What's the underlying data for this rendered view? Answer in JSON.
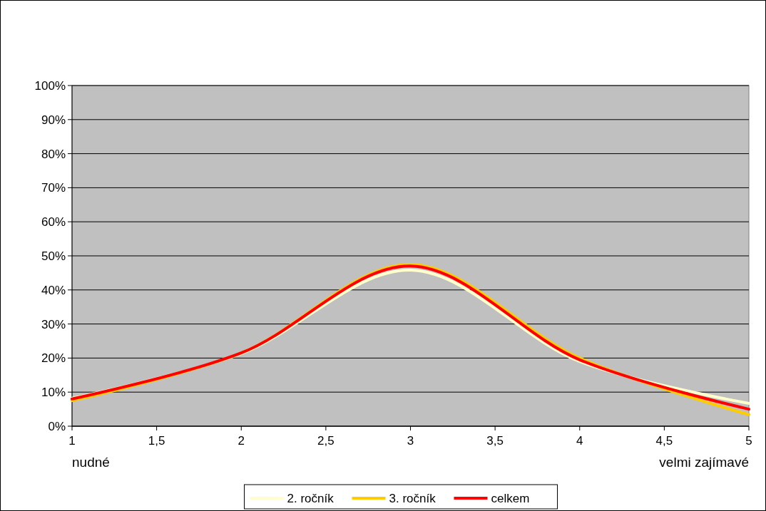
{
  "chart_data": {
    "type": "line",
    "x": [
      1,
      2,
      3,
      4,
      5
    ],
    "series": [
      {
        "name": "2. ročník",
        "color": "#ffffcc",
        "values": [
          8.2,
          21.3,
          45.8,
          19,
          6.7
        ]
      },
      {
        "name": "3. ročník",
        "color": "#ffcc00",
        "values": [
          7.5,
          21.5,
          47.5,
          20,
          3.4
        ]
      },
      {
        "name": "celkem",
        "color": "#ff0000",
        "values": [
          8,
          21.5,
          47,
          19.5,
          5
        ]
      }
    ],
    "xlim": [
      1,
      5
    ],
    "xticks": [
      1,
      {
        "value": 1.5,
        "label": "1,5"
      },
      2,
      {
        "value": 2.5,
        "label": "2,5"
      },
      3,
      {
        "value": 3.5,
        "label": "3,5"
      },
      4,
      {
        "value": 4.5,
        "label": "4,5"
      },
      5
    ],
    "ylim": [
      0,
      100
    ],
    "yticks": [
      {
        "value": 0,
        "label": "0%"
      },
      {
        "value": 10,
        "label": "10%"
      },
      {
        "value": 20,
        "label": "20%"
      },
      {
        "value": 30,
        "label": "30%"
      },
      {
        "value": 40,
        "label": "40%"
      },
      {
        "value": 50,
        "label": "50%"
      },
      {
        "value": 60,
        "label": "60%"
      },
      {
        "value": 70,
        "label": "70%"
      },
      {
        "value": 80,
        "label": "80%"
      },
      {
        "value": 90,
        "label": "90%"
      },
      {
        "value": 100,
        "label": "100%"
      }
    ],
    "grid": "y",
    "legend": "bottom",
    "marker": "none",
    "line_style": "solid",
    "annotations": [
      "nudné",
      "velmi zajímavé"
    ]
  }
}
